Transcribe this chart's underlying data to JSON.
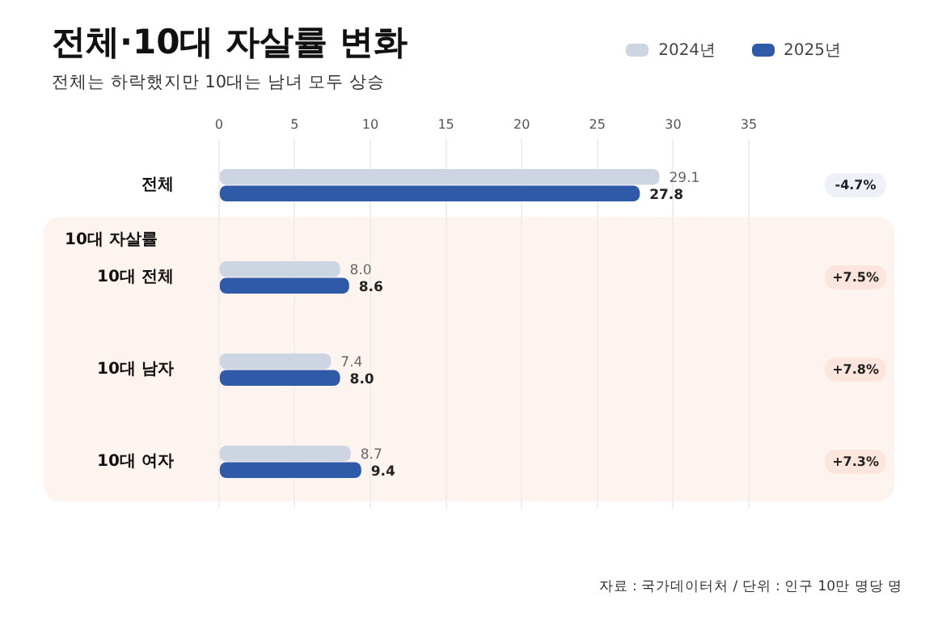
{
  "chart_data": {
    "type": "bar",
    "orientation": "horizontal",
    "title": "전체·10대 자살률 변화",
    "subtitle": "전체는 하락했지만 10대는 남녀 모두 상승",
    "categories": [
      "전체",
      "10대 전체",
      "10대 남자",
      "10대 여자"
    ],
    "series": [
      {
        "name": "2024년",
        "color": "#cdd5e3",
        "values": [
          29.1,
          8.0,
          7.4,
          8.7
        ],
        "value_labels": [
          "29.1",
          "8.0",
          "7.4",
          "8.7"
        ]
      },
      {
        "name": "2025년",
        "color": "#2e5aa8",
        "values": [
          27.8,
          8.6,
          8.0,
          9.4
        ],
        "value_labels": [
          "27.8",
          "8.6",
          "8.0",
          "9.4"
        ]
      }
    ],
    "xlim": [
      0,
      35
    ],
    "xticks": [
      0,
      5,
      10,
      15,
      20,
      25,
      30,
      35
    ],
    "grid": "x",
    "legend": "top right",
    "annotations": [
      "10대 자살률",
      "-4.7%",
      "+7.5%",
      "+7.8%",
      "+7.3%",
      "자료 : 국가데이터처 / 단위 : 인구 10만 명당 명"
    ]
  }
}
